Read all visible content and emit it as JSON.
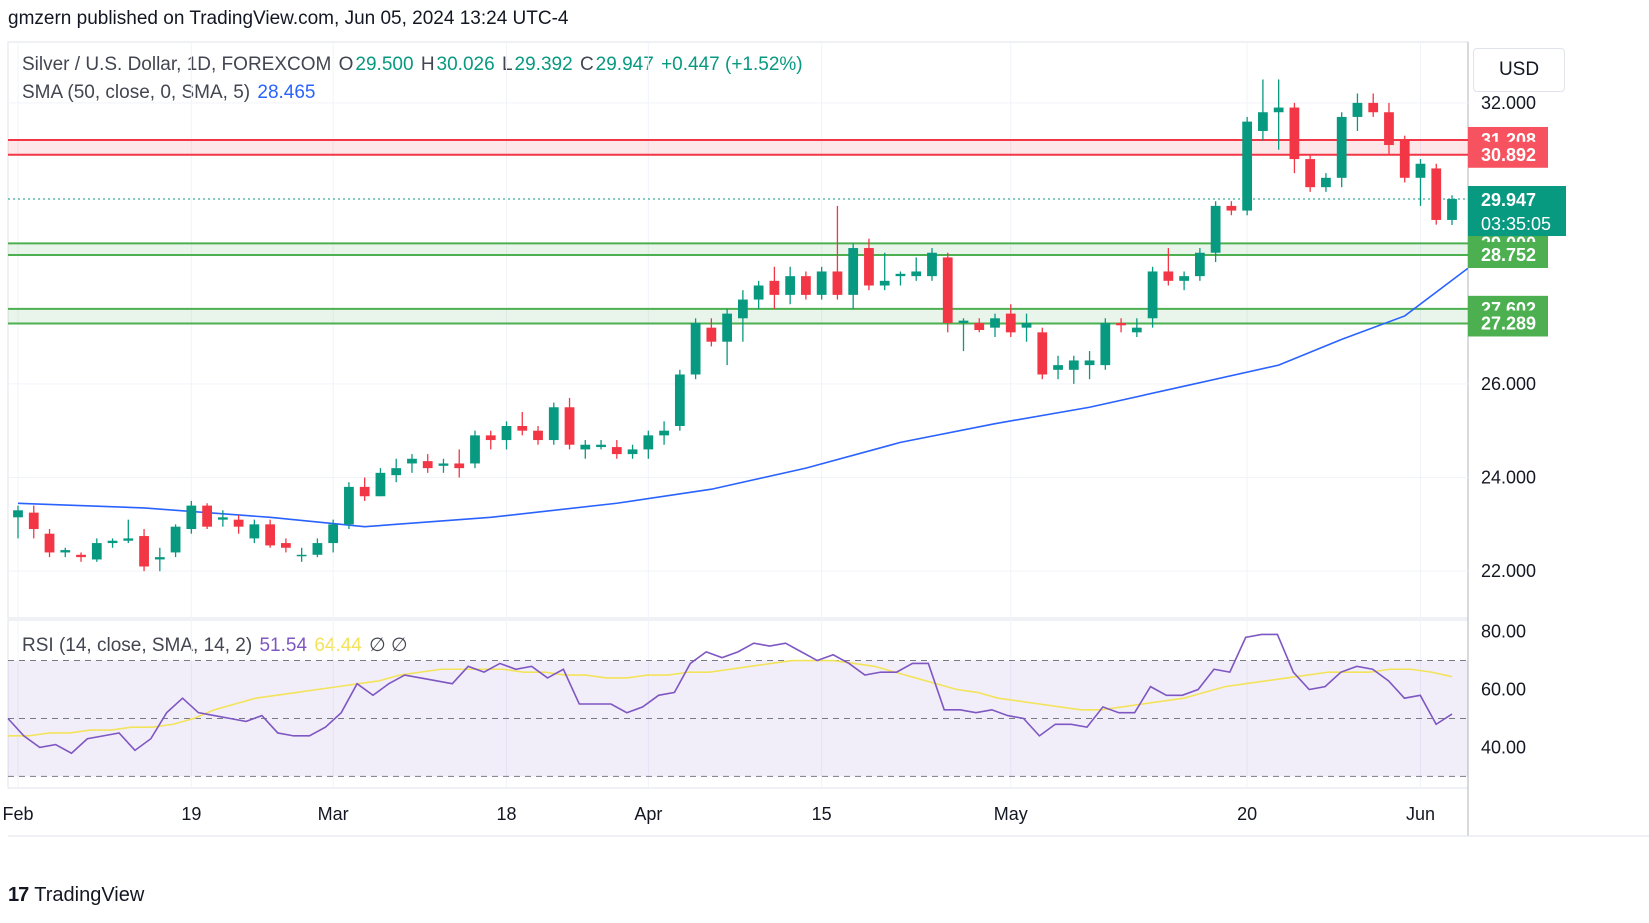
{
  "header": {
    "publish_line": "gmzern published on TradingView.com, Jun 05, 2024 13:24 UTC-4"
  },
  "legend": {
    "symbol": "Silver / U.S. Dollar, 1D, FOREXCOM",
    "open_label": "O",
    "open": "29.500",
    "high_label": "H",
    "high": "30.026",
    "low_label": "L",
    "low": "29.392",
    "close_label": "C",
    "close": "29.947",
    "change": "+0.447 (+1.52%)",
    "sma_label": "SMA (50, close, 0, SMA, 5)",
    "sma_value": "28.465",
    "rsi_label": "RSI (14, close, SMA, 14, 2)",
    "rsi_value": "51.54",
    "rsi_sma_value": "64.44",
    "rsi_extra": "∅  ∅"
  },
  "currency": "USD",
  "footer": {
    "logo": "17",
    "brand": "TradingView"
  },
  "colors": {
    "up": "#089981",
    "down": "#f23645",
    "sma": "#2962ff",
    "rsi": "#7e57c2",
    "rsi_sma": "#f3e35a",
    "support": "#4caf50",
    "resistance": "#f23645"
  },
  "chart_data": {
    "type": "candlestick",
    "price_axis": {
      "ticks": [
        "32.000",
        "26.000",
        "24.000",
        "22.000"
      ],
      "range": [
        21.0,
        33.3
      ]
    },
    "time_axis": {
      "ticks": [
        "Feb",
        "19",
        "Mar",
        "18",
        "Apr",
        "15",
        "May",
        "20",
        "Jun"
      ]
    },
    "current_price": {
      "value": "29.947",
      "countdown": "03:35:05"
    },
    "zones": [
      {
        "kind": "resistance",
        "upper": 31.208,
        "lower": 30.892,
        "upper_label": "31.208",
        "lower_label": "30.892"
      },
      {
        "kind": "support",
        "upper": 29.0,
        "lower": 28.752,
        "upper_label": "29.000",
        "lower_label": "28.752"
      },
      {
        "kind": "support",
        "upper": 27.602,
        "lower": 27.289,
        "upper_label": "27.602",
        "lower_label": "27.289"
      }
    ],
    "candles": [
      [
        23.15,
        23.3,
        22.8,
        23.4,
        22.7
      ],
      [
        23.25,
        22.9,
        22.7,
        23.4,
        22.7
      ],
      [
        22.8,
        22.4,
        22.4,
        22.9,
        22.3
      ],
      [
        22.4,
        22.45,
        22.3,
        22.5,
        22.3
      ],
      [
        22.35,
        22.3,
        22.25,
        22.4,
        22.2
      ],
      [
        22.25,
        22.6,
        22.2,
        22.7,
        22.2
      ],
      [
        22.6,
        22.65,
        22.5,
        22.7,
        22.5
      ],
      [
        22.65,
        22.7,
        22.6,
        23.1,
        22.6
      ],
      [
        22.75,
        22.1,
        22.1,
        22.9,
        22.0
      ],
      [
        22.25,
        22.3,
        22.0,
        22.5,
        22.0
      ],
      [
        22.4,
        22.95,
        22.4,
        23.0,
        22.3
      ],
      [
        22.9,
        23.4,
        22.9,
        23.5,
        22.8
      ],
      [
        23.4,
        22.95,
        22.9,
        23.45,
        22.9
      ],
      [
        23.1,
        23.15,
        23.0,
        23.3,
        22.95
      ],
      [
        23.1,
        22.95,
        22.9,
        23.2,
        22.8
      ],
      [
        22.7,
        23.0,
        22.6,
        23.1,
        22.6
      ],
      [
        23.0,
        22.55,
        22.5,
        23.1,
        22.5
      ],
      [
        22.6,
        22.5,
        22.4,
        22.7,
        22.4
      ],
      [
        22.35,
        22.35,
        22.3,
        22.5,
        22.2
      ],
      [
        22.35,
        22.6,
        22.3,
        22.7,
        22.3
      ],
      [
        22.6,
        23.0,
        22.5,
        23.1,
        22.4
      ],
      [
        23.0,
        23.8,
        23.0,
        23.9,
        22.9
      ],
      [
        23.8,
        23.6,
        23.5,
        24.0,
        23.5
      ],
      [
        23.6,
        24.1,
        23.6,
        24.2,
        23.6
      ],
      [
        24.05,
        24.2,
        24.0,
        24.4,
        23.9
      ],
      [
        24.3,
        24.4,
        24.2,
        24.5,
        24.1
      ],
      [
        24.35,
        24.2,
        24.1,
        24.5,
        24.1
      ],
      [
        24.25,
        24.3,
        24.1,
        24.4,
        24.1
      ],
      [
        24.3,
        24.2,
        24.1,
        24.6,
        24.0
      ],
      [
        24.3,
        24.9,
        24.3,
        25.0,
        24.2
      ],
      [
        24.9,
        24.8,
        24.6,
        25.0,
        24.6
      ],
      [
        24.8,
        25.1,
        24.7,
        25.2,
        24.6
      ],
      [
        25.1,
        25.0,
        24.9,
        25.4,
        24.9
      ],
      [
        25.0,
        24.8,
        24.7,
        25.1,
        24.7
      ],
      [
        24.8,
        25.5,
        24.8,
        25.6,
        24.7
      ],
      [
        25.5,
        24.7,
        24.6,
        25.7,
        24.6
      ],
      [
        24.6,
        24.7,
        24.5,
        24.8,
        24.4
      ],
      [
        24.65,
        24.7,
        24.6,
        24.8,
        24.6
      ],
      [
        24.65,
        24.5,
        24.5,
        24.8,
        24.4
      ],
      [
        24.5,
        24.6,
        24.4,
        24.7,
        24.4
      ],
      [
        24.6,
        24.9,
        24.5,
        25.0,
        24.4
      ],
      [
        24.9,
        25.0,
        24.8,
        25.2,
        24.7
      ],
      [
        25.1,
        26.2,
        25.1,
        26.3,
        25.0
      ],
      [
        26.2,
        27.3,
        26.2,
        27.4,
        26.1
      ],
      [
        27.2,
        26.9,
        26.8,
        27.4,
        26.8
      ],
      [
        26.9,
        27.5,
        26.8,
        27.6,
        26.4
      ],
      [
        27.4,
        27.8,
        27.3,
        28.0,
        26.9
      ],
      [
        27.8,
        28.1,
        27.7,
        28.2,
        27.6
      ],
      [
        28.2,
        27.9,
        27.8,
        28.5,
        27.6
      ],
      [
        27.9,
        28.3,
        27.8,
        28.5,
        27.7
      ],
      [
        28.3,
        27.9,
        27.8,
        28.4,
        27.8
      ],
      [
        27.9,
        28.4,
        27.9,
        28.5,
        27.8
      ],
      [
        28.4,
        27.9,
        27.9,
        29.8,
        27.8
      ],
      [
        27.9,
        28.9,
        27.7,
        29.0,
        27.6
      ],
      [
        28.9,
        28.1,
        28.1,
        29.1,
        28.0
      ],
      [
        28.1,
        28.2,
        28.0,
        28.8,
        28.0
      ],
      [
        28.3,
        28.35,
        28.2,
        28.4,
        28.1
      ],
      [
        28.3,
        28.4,
        28.2,
        28.7,
        28.2
      ],
      [
        28.3,
        28.8,
        28.2,
        28.9,
        28.2
      ],
      [
        28.7,
        27.3,
        27.2,
        28.8,
        27.1
      ],
      [
        27.3,
        27.35,
        26.8,
        27.4,
        26.7
      ],
      [
        27.3,
        27.15,
        27.1,
        27.4,
        27.1
      ],
      [
        27.2,
        27.4,
        27.0,
        27.5,
        27.0
      ],
      [
        27.5,
        27.1,
        27.0,
        27.7,
        27.0
      ],
      [
        27.2,
        27.3,
        27.0,
        27.5,
        26.9
      ],
      [
        27.1,
        26.2,
        26.1,
        27.2,
        26.1
      ],
      [
        26.3,
        26.4,
        26.2,
        26.6,
        26.1
      ],
      [
        26.3,
        26.5,
        26.0,
        26.6,
        26.0
      ],
      [
        26.4,
        26.5,
        26.2,
        26.7,
        26.1
      ],
      [
        26.4,
        27.3,
        26.4,
        27.4,
        26.3
      ],
      [
        27.3,
        27.25,
        27.0,
        27.4,
        27.1
      ],
      [
        27.1,
        27.2,
        27.0,
        27.4,
        27.0
      ],
      [
        27.4,
        28.4,
        27.3,
        28.5,
        27.2
      ],
      [
        28.4,
        28.2,
        28.1,
        28.9,
        28.1
      ],
      [
        28.2,
        28.3,
        28.1,
        28.4,
        28.0
      ],
      [
        28.3,
        28.8,
        28.2,
        28.9,
        28.2
      ],
      [
        28.8,
        29.8,
        28.7,
        29.9,
        28.6
      ],
      [
        29.8,
        29.7,
        29.6,
        29.9,
        29.6
      ],
      [
        29.7,
        31.6,
        29.6,
        31.7,
        29.6
      ],
      [
        31.4,
        31.8,
        31.3,
        32.5,
        31.2
      ],
      [
        31.8,
        31.9,
        31.5,
        32.5,
        31.0
      ],
      [
        31.9,
        30.8,
        30.7,
        32.0,
        30.5
      ],
      [
        30.8,
        30.2,
        30.1,
        30.9,
        30.1
      ],
      [
        30.2,
        30.4,
        30.1,
        30.5,
        30.1
      ],
      [
        30.4,
        31.7,
        30.3,
        31.8,
        30.2
      ],
      [
        31.7,
        32.0,
        31.4,
        32.2,
        31.4
      ],
      [
        32.0,
        31.8,
        31.7,
        32.2,
        31.7
      ],
      [
        31.8,
        31.1,
        31.0,
        32.0,
        30.9
      ],
      [
        31.2,
        30.4,
        30.3,
        31.3,
        30.3
      ],
      [
        30.4,
        30.7,
        29.8,
        30.8,
        29.8
      ],
      [
        30.6,
        29.5,
        29.4,
        30.7,
        29.4
      ],
      [
        29.5,
        29.947,
        29.392,
        30.026,
        29.392
      ]
    ],
    "sma50": [
      [
        0,
        23.45
      ],
      [
        8,
        23.35
      ],
      [
        16,
        23.15
      ],
      [
        22,
        22.95
      ],
      [
        30,
        23.15
      ],
      [
        38,
        23.45
      ],
      [
        44,
        23.75
      ],
      [
        50,
        24.2
      ],
      [
        56,
        24.75
      ],
      [
        62,
        25.15
      ],
      [
        68,
        25.5
      ],
      [
        74,
        25.95
      ],
      [
        80,
        26.4
      ],
      [
        84,
        26.95
      ],
      [
        88,
        27.45
      ],
      [
        92,
        28.465
      ]
    ],
    "rsi": {
      "ticks": [
        "80.00",
        "60.00",
        "40.00"
      ],
      "range": [
        26,
        84
      ],
      "levels": [
        70,
        50,
        30
      ],
      "values": [
        50,
        44,
        40,
        41,
        38,
        43,
        44,
        45,
        39,
        43,
        52,
        57,
        52,
        51,
        50,
        49,
        51,
        45,
        44,
        44,
        47,
        52,
        62,
        58,
        62,
        65,
        64,
        63,
        62,
        68,
        66,
        69,
        67,
        68,
        64,
        67,
        55,
        55,
        55,
        52,
        54,
        58,
        59,
        69,
        73,
        71,
        73,
        76,
        75,
        76,
        73,
        70,
        72,
        69,
        65,
        66,
        66,
        69,
        69,
        53,
        53,
        52,
        53,
        51,
        50,
        44,
        48,
        48,
        47,
        54,
        52,
        52,
        61,
        58,
        58,
        60,
        67,
        66,
        78,
        79,
        79,
        66,
        60,
        61,
        66,
        68,
        67,
        63,
        57,
        58,
        48,
        51.54
      ],
      "sma": [
        44,
        44,
        45,
        45,
        46,
        46,
        47,
        47,
        48,
        50,
        53,
        55,
        57,
        58,
        59,
        60,
        61,
        62,
        63,
        65,
        66,
        67,
        67,
        67,
        67,
        66,
        66,
        65,
        65,
        64,
        64,
        65,
        65,
        66,
        66,
        67,
        68,
        69,
        70,
        70,
        70,
        69,
        68,
        66,
        64,
        62,
        60,
        59,
        57,
        56,
        55,
        54,
        53,
        53,
        54,
        55,
        56,
        57,
        59,
        61,
        62,
        63,
        64,
        65,
        66,
        66,
        66,
        67,
        67,
        66,
        64.44
      ]
    }
  }
}
